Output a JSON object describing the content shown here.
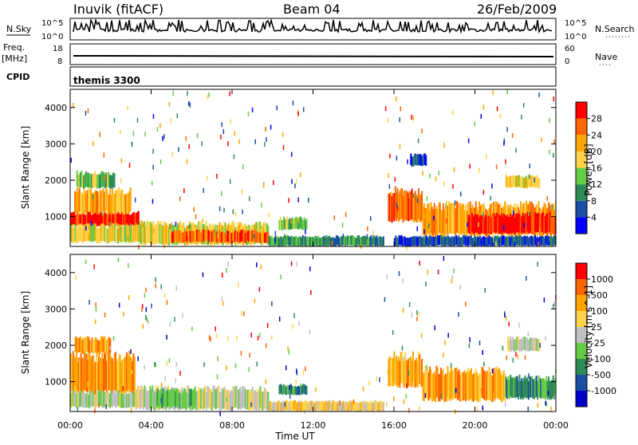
{
  "header": {
    "station": "Inuvik (fitACF)",
    "beam": "Beam 04",
    "date": "26/Feb/2009"
  },
  "panels": {
    "nsky_label": "N.Sky",
    "nsky_ticks": [
      "10^5",
      "10^0"
    ],
    "nsky_right_ticks": [
      "10^5",
      "10^0"
    ],
    "nsearch_label": "N.Search",
    "freq_label": "Freq.",
    "freq_unit": "[MHz]",
    "freq_ticks": [
      "18",
      "8"
    ],
    "nave_label": "Nave",
    "nave_ticks": [
      "60",
      "0"
    ],
    "cpid_label": "CPID",
    "cpid_text": "themis 3300"
  },
  "colors": {
    "power": [
      "#0000ff",
      "#1a4fa5",
      "#2e8b57",
      "#66cc44",
      "#ffd24a",
      "#ffa500",
      "#ff6600",
      "#ff0000"
    ],
    "velocity": [
      "#0000cc",
      "#1a4fa5",
      "#2e8b57",
      "#66cc44",
      "#c0c0c0",
      "#ffd24a",
      "#ffa500",
      "#ff6600",
      "#ff0000"
    ]
  },
  "chart_data": [
    {
      "type": "heatmap",
      "name": "power",
      "ylabel": "Slant Range [km]",
      "xlabel": "Time UT",
      "x_ticks": [
        "00:00",
        "04:00",
        "08:00",
        "12:00",
        "16:00",
        "20:00",
        "00:00"
      ],
      "y_ticks": [
        "1000",
        "2000",
        "3000",
        "4000"
      ],
      "ylim": [
        180,
        4500
      ],
      "xlim_hours": [
        0,
        24
      ],
      "colorbar_label": "Power [dB]",
      "colorbar_ticks": [
        "28",
        "24",
        "20",
        "16",
        "12",
        "8",
        "4"
      ],
      "regions": [
        {
          "x0": 0.0,
          "x1": 3.4,
          "y0": 750,
          "y1": 1100,
          "level": 7
        },
        {
          "x0": 0.2,
          "x1": 3.0,
          "y0": 1100,
          "y1": 1700,
          "level": 5
        },
        {
          "x0": 0.0,
          "x1": 3.6,
          "y0": 300,
          "y1": 750,
          "level": 4
        },
        {
          "x0": 0.3,
          "x1": 2.2,
          "y0": 1800,
          "y1": 2200,
          "level": 3
        },
        {
          "x0": 3.4,
          "x1": 9.8,
          "y0": 250,
          "y1": 800,
          "level": 4
        },
        {
          "x0": 5.0,
          "x1": 9.8,
          "y0": 300,
          "y1": 600,
          "level": 6
        },
        {
          "x0": 9.8,
          "x1": 15.5,
          "y0": 200,
          "y1": 450,
          "level": 2
        },
        {
          "x0": 10.3,
          "x1": 11.7,
          "y0": 650,
          "y1": 950,
          "level": 3
        },
        {
          "x0": 15.7,
          "x1": 17.4,
          "y0": 900,
          "y1": 1700,
          "level": 6
        },
        {
          "x0": 17.4,
          "x1": 24.0,
          "y0": 500,
          "y1": 1300,
          "level": 5
        },
        {
          "x0": 19.6,
          "x1": 24.0,
          "y0": 550,
          "y1": 1050,
          "level": 7
        },
        {
          "x0": 21.5,
          "x1": 23.2,
          "y0": 1800,
          "y1": 2100,
          "level": 4
        },
        {
          "x0": 16.0,
          "x1": 24.0,
          "y0": 200,
          "y1": 450,
          "level": 1
        },
        {
          "x0": 16.8,
          "x1": 17.6,
          "y0": 2400,
          "y1": 2700,
          "level": 1
        }
      ]
    },
    {
      "type": "heatmap",
      "name": "velocity",
      "ylabel": "Slant Range [km]",
      "xlabel": "Time UT",
      "x_ticks": [
        "00:00",
        "04:00",
        "08:00",
        "12:00",
        "16:00",
        "20:00",
        "00:00"
      ],
      "y_ticks": [
        "1000",
        "2000",
        "3000",
        "4000"
      ],
      "ylim": [
        180,
        4500
      ],
      "xlim_hours": [
        0,
        24
      ],
      "colorbar_label": "Velocity [m s^-1]",
      "colorbar_ticks": [
        "1000",
        "500",
        "100",
        "25",
        "-25",
        "-100",
        "-500",
        "-1000"
      ],
      "regions": [
        {
          "x0": 0.0,
          "x1": 3.2,
          "y0": 700,
          "y1": 1700,
          "level": 6
        },
        {
          "x0": 0.0,
          "x1": 3.2,
          "y0": 300,
          "y1": 700,
          "level": 4
        },
        {
          "x0": 0.2,
          "x1": 2.0,
          "y0": 1800,
          "y1": 2200,
          "level": 6
        },
        {
          "x0": 3.2,
          "x1": 9.8,
          "y0": 250,
          "y1": 800,
          "level": 4
        },
        {
          "x0": 4.0,
          "x1": 6.0,
          "y0": 300,
          "y1": 750,
          "level": 3
        },
        {
          "x0": 9.8,
          "x1": 15.5,
          "y0": 200,
          "y1": 450,
          "level": 5
        },
        {
          "x0": 10.3,
          "x1": 11.7,
          "y0": 650,
          "y1": 900,
          "level": 2
        },
        {
          "x0": 15.7,
          "x1": 17.4,
          "y0": 900,
          "y1": 1700,
          "level": 6
        },
        {
          "x0": 17.4,
          "x1": 21.5,
          "y0": 500,
          "y1": 1300,
          "level": 6
        },
        {
          "x0": 21.5,
          "x1": 24.0,
          "y0": 550,
          "y1": 1100,
          "level": 2
        },
        {
          "x0": 21.6,
          "x1": 23.2,
          "y0": 1850,
          "y1": 2200,
          "level": 4
        }
      ]
    }
  ]
}
